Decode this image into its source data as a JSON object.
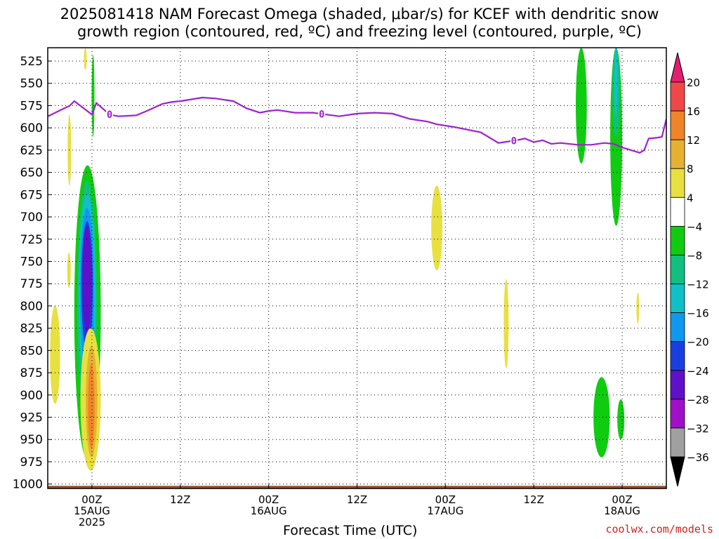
{
  "title_line1": "2025081418 NAM Forecast Omega (shaded, μbar/s) for KCEF with dendritic snow",
  "title_line2": "growth region (contoured, red, ºC) and freezing level (contoured, purple, ºC)",
  "x_axis_title": "Forecast Time (UTC)",
  "credit": "coolwx.com/models",
  "chart_data": {
    "type": "heatmap",
    "ylabel": "",
    "xlabel": "Forecast Time (UTC)",
    "y_pressure_levels": [
      525,
      550,
      575,
      600,
      625,
      650,
      675,
      700,
      725,
      750,
      775,
      800,
      825,
      850,
      875,
      900,
      925,
      950,
      975,
      1000
    ],
    "ylim": [
      1005,
      510
    ],
    "x_hours_range": [
      -10,
      130
    ],
    "x_ticks": [
      {
        "hour": 0,
        "line1": "00Z",
        "line2": "15AUG",
        "line3": "2025"
      },
      {
        "hour": 20,
        "line1": "12Z",
        "line2": "",
        "line3": ""
      },
      {
        "hour": 40,
        "line1": "00Z",
        "line2": "16AUG",
        "line3": ""
      },
      {
        "hour": 60,
        "line1": "12Z",
        "line2": "",
        "line3": ""
      },
      {
        "hour": 80,
        "line1": "00Z",
        "line2": "17AUG",
        "line3": ""
      },
      {
        "hour": 100,
        "line1": "12Z",
        "line2": "",
        "line3": ""
      },
      {
        "hour": 120,
        "line1": "00Z",
        "line2": "18AUG",
        "line3": ""
      }
    ],
    "colorbar": {
      "levels": [
        "20",
        "16",
        "12",
        "8",
        "4",
        "−4",
        "−8",
        "−12",
        "−16",
        "−20",
        "−24",
        "−28",
        "−32",
        "−36"
      ],
      "colors_top_to_bottom": [
        "#e0206e",
        "#f04848",
        "#f08428",
        "#e8b030",
        "#e8e040",
        "#ffffff",
        "#10cc10",
        "#10c080",
        "#10c0c8",
        "#1098f0",
        "#1840e0",
        "#6010c8",
        "#a010c8",
        "#a0a0a0",
        "#000000"
      ]
    },
    "freezing_level": {
      "label": "0",
      "color": "#a020d0",
      "hours": [
        -10,
        -5,
        -4,
        0,
        1,
        4,
        6,
        10,
        12,
        16,
        18,
        20,
        25,
        28,
        32,
        35,
        38,
        40,
        42,
        46,
        50,
        56,
        60,
        64,
        68,
        72,
        76,
        78,
        82,
        88,
        92,
        96,
        98,
        100,
        102,
        104,
        106,
        110,
        113,
        116,
        118,
        120,
        122,
        124,
        125,
        126,
        128,
        129,
        130
      ],
      "pressure": [
        587,
        575,
        570,
        585,
        572,
        585,
        587,
        586,
        582,
        573,
        571,
        570,
        566,
        567,
        570,
        578,
        583,
        581,
        580,
        583,
        583,
        587,
        584,
        583,
        584,
        590,
        593,
        596,
        599,
        605,
        617,
        614,
        612,
        616,
        614,
        618,
        617,
        619,
        619,
        617,
        618,
        622,
        625,
        628,
        625,
        612,
        611,
        610,
        590
      ]
    },
    "omega_regions": [
      {
        "value": "4 to 8",
        "color": "#e8e040",
        "hours": [
          -5.5,
          -4.7
        ],
        "pressure": [
          585,
          665
        ]
      },
      {
        "value": "4 to 8",
        "color": "#e8e040",
        "hours": [
          -1.8,
          -1.2
        ],
        "pressure": [
          510,
          535
        ]
      },
      {
        "value": "4 to 8",
        "color": "#e8e040",
        "hours": [
          -5.6,
          -4.8
        ],
        "pressure": [
          740,
          780
        ]
      },
      {
        "value": "4 to 8",
        "color": "#e8e040",
        "hours": [
          -9.5,
          -7.2
        ],
        "pressure": [
          800,
          910
        ]
      },
      {
        "value": "−4 to −8",
        "color": "#10cc10",
        "hours": [
          0,
          0.5
        ],
        "pressure": [
          518,
          610
        ]
      },
      {
        "value": "−4 to −8",
        "color": "#10cc10",
        "hours": [
          -4,
          2
        ],
        "pressure": [
          642,
          972
        ]
      },
      {
        "value": "−8 to −12",
        "color": "#10c080",
        "hours": [
          -3.3,
          1.1
        ],
        "pressure": [
          660,
          935
        ]
      },
      {
        "value": "−12 to −16",
        "color": "#10c0c8",
        "hours": [
          -3,
          0.8
        ],
        "pressure": [
          675,
          900
        ]
      },
      {
        "value": "−16 to −20",
        "color": "#1098f0",
        "hours": [
          -2.7,
          0.5
        ],
        "pressure": [
          690,
          875
        ]
      },
      {
        "value": "−20 to −24",
        "color": "#1840e0",
        "hours": [
          -2.4,
          0.2
        ],
        "pressure": [
          705,
          850
        ]
      },
      {
        "value": "−24 to −28",
        "color": "#6010c8",
        "hours": [
          -2.1,
          -0.1
        ],
        "pressure": [
          710,
          830
        ]
      },
      {
        "value": "4 to 8",
        "color": "#e8e040",
        "hours": [
          -2.6,
          2
        ],
        "pressure": [
          825,
          985
        ]
      },
      {
        "value": "8 to 12",
        "color": "#e8b030",
        "hours": [
          -1.4,
          1.2
        ],
        "pressure": [
          845,
          970
        ]
      },
      {
        "value": "12 to 16",
        "color": "#f08428",
        "hours": [
          -0.9,
          0.6
        ],
        "pressure": [
          865,
          960
        ]
      },
      {
        "value": "4 to 8",
        "color": "#e8e040",
        "hours": [
          76.8,
          79.3
        ],
        "pressure": [
          665,
          760
        ]
      },
      {
        "value": "4 to 8",
        "color": "#e8e040",
        "hours": [
          93.2,
          94.3
        ],
        "pressure": [
          770,
          870
        ]
      },
      {
        "value": "4 to 8",
        "color": "#e8e040",
        "hours": [
          123.3,
          123.8
        ],
        "pressure": [
          785,
          820
        ]
      },
      {
        "value": "−4 to −8",
        "color": "#10cc10",
        "hours": [
          109.5,
          112
        ],
        "pressure": [
          510,
          640
        ]
      },
      {
        "value": "−4 to −8",
        "color": "#10cc10",
        "hours": [
          117.3,
          120
        ],
        "pressure": [
          510,
          710
        ]
      },
      {
        "value": "−8 to −12",
        "color": "#10c080",
        "hours": [
          117.8,
          119.4
        ],
        "pressure": [
          510,
          610
        ]
      },
      {
        "value": "−12 to −16",
        "color": "#10c0c8",
        "hours": [
          118.2,
          119
        ],
        "pressure": [
          510,
          585
        ]
      },
      {
        "value": "−4 to −8",
        "color": "#10cc10",
        "hours": [
          113.5,
          117.2
        ],
        "pressure": [
          880,
          970
        ]
      },
      {
        "value": "−4 to −8",
        "color": "#10cc10",
        "hours": [
          118.9,
          120.5
        ],
        "pressure": [
          905,
          950
        ]
      }
    ],
    "terrain_color": "#a0522d",
    "grid": true
  }
}
